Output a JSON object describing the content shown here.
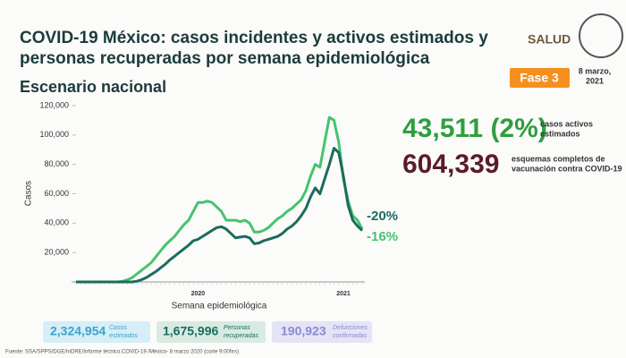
{
  "header": {
    "title_line1": "COVID-19 México: casos incidentes y activos estimados y",
    "title_line2": "personas recuperadas por semana epidemiológica",
    "subtitle": "Escenario nacional",
    "logo": "SALUD",
    "phase": "Fase 3",
    "date_line1": "8 marzo,",
    "date_line2": "2021"
  },
  "stats": {
    "active_value": "43,511 (2%)",
    "active_label1": "casos activos",
    "active_label2": "estimados",
    "vaccine_value": "604,339",
    "vaccine_label1": "esquemas completos de",
    "vaccine_label2": "vacunación contra COVID-19"
  },
  "boxes": [
    {
      "value": "2,324,954",
      "label1": "Casos",
      "label2": "estimados"
    },
    {
      "value": "1,675,996",
      "label1": "Personas",
      "label2": "recuperadas"
    },
    {
      "value": "190,923",
      "label1": "Defunciones",
      "label2": "confirmadas"
    }
  ],
  "source": "Fuente: SSA/SPPS/DGE/InDRE/Informe técnico.COVID-19 /México- 8 marzo 2020 (corte 9:00hrs)",
  "chart_data": {
    "type": "line",
    "x_label": "Semana epidemiológica",
    "y_label": "Casos",
    "year_labels": [
      "2020",
      "2021"
    ],
    "annotations": [
      "-20%",
      "-16%"
    ],
    "categories": [
      null,
      null,
      null,
      null,
      null,
      null,
      null,
      null,
      null,
      null,
      null,
      null,
      null,
      null,
      null,
      null,
      null,
      null,
      null,
      null,
      null,
      null,
      null,
      null,
      null,
      null,
      null,
      null,
      null,
      null,
      null,
      null,
      null,
      null,
      null,
      null,
      null,
      null,
      null,
      null,
      null,
      null,
      null,
      null,
      null,
      null,
      null,
      null,
      null,
      null,
      null,
      null,
      null,
      null,
      null,
      null,
      null,
      null,
      null,
      null,
      null,
      null
    ],
    "series": [
      {
        "color": "#45c46e",
        "values": [
          0,
          0,
          0,
          0,
          0,
          0,
          0,
          0,
          0,
          0,
          500,
          1500,
          3000,
          5500,
          8000,
          10500,
          13000,
          17000,
          21000,
          25000,
          28000,
          31000,
          35000,
          39000,
          42000,
          48000,
          54000,
          54000,
          55000,
          54000,
          51000,
          48000,
          42000,
          42000,
          42000,
          41000,
          42000,
          40000,
          34000,
          34000,
          35000,
          37000,
          40000,
          43000,
          45000,
          48000,
          50000,
          53000,
          56000,
          62000,
          72000,
          80000,
          78000,
          95000,
          112000,
          110000,
          95000,
          70000,
          55000,
          45000,
          42000,
          36000
        ]
      },
      {
        "color": "#1d6b5e",
        "values": [
          0,
          0,
          0,
          0,
          0,
          0,
          0,
          0,
          0,
          0,
          0,
          0,
          0,
          500,
          1500,
          3000,
          5000,
          7000,
          9500,
          12000,
          15000,
          17500,
          20000,
          22500,
          25000,
          28000,
          29000,
          31000,
          33000,
          35000,
          37000,
          37500,
          36000,
          33000,
          30000,
          30500,
          31000,
          30000,
          26000,
          26500,
          28000,
          29000,
          30000,
          31000,
          33000,
          36000,
          38000,
          41000,
          45000,
          50000,
          58000,
          64000,
          60000,
          70000,
          80000,
          91000,
          88000,
          72000,
          52000,
          42000,
          38000,
          35000
        ]
      }
    ],
    "ylim": [
      0,
      120000
    ],
    "yticks": [
      {
        "value": 20000,
        "label": "20,000"
      },
      {
        "value": 40000,
        "label": "40,000"
      },
      {
        "value": 60000,
        "label": "60,000"
      },
      {
        "value": 80000,
        "label": "80,000"
      },
      {
        "value": 100000,
        "label": "100,000"
      },
      {
        "value": 120000,
        "label": "120,000"
      }
    ]
  }
}
